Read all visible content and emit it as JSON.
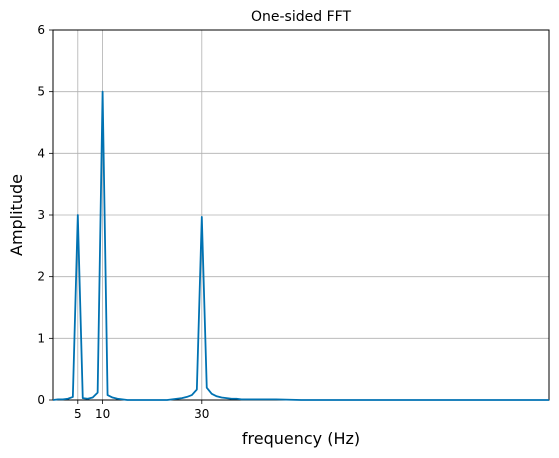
{
  "chart_data": {
    "type": "line",
    "title": "One-sided FFT",
    "xlabel": "frequency (Hz)",
    "ylabel": "Amplitude",
    "xlim": [
      0,
      100
    ],
    "ylim": [
      0,
      6
    ],
    "xticks": [
      5,
      10,
      30
    ],
    "xtick_labels": [
      "5",
      "10",
      "30"
    ],
    "yticks": [
      0,
      1,
      2,
      3,
      4,
      5,
      6
    ],
    "ytick_labels": [
      "0",
      "1",
      "2",
      "3",
      "4",
      "5",
      "6"
    ],
    "grid": true,
    "line_color": "#0072b2",
    "series": [
      {
        "x": [
          0,
          1,
          2,
          3,
          4,
          5,
          6,
          7,
          8,
          9,
          10,
          11,
          12,
          13,
          14,
          15,
          16,
          17,
          18,
          19,
          20,
          21,
          22,
          23,
          24,
          25,
          26,
          27,
          28,
          29,
          30,
          31,
          32,
          33,
          34,
          35,
          36,
          37,
          38,
          40,
          45,
          50,
          55,
          60,
          70,
          80,
          90,
          100
        ],
        "y": [
          0.0,
          0.01,
          0.01,
          0.02,
          0.05,
          3.0,
          0.03,
          0.02,
          0.04,
          0.12,
          5.0,
          0.08,
          0.04,
          0.02,
          0.01,
          0.0,
          0.0,
          0.0,
          0.0,
          0.0,
          0.0,
          0.0,
          0.0,
          0.0,
          0.01,
          0.02,
          0.03,
          0.05,
          0.08,
          0.17,
          2.97,
          0.2,
          0.1,
          0.06,
          0.04,
          0.03,
          0.02,
          0.02,
          0.01,
          0.01,
          0.01,
          0.0,
          0.0,
          0.0,
          0.0,
          0.0,
          0.0,
          0.0
        ]
      }
    ]
  }
}
